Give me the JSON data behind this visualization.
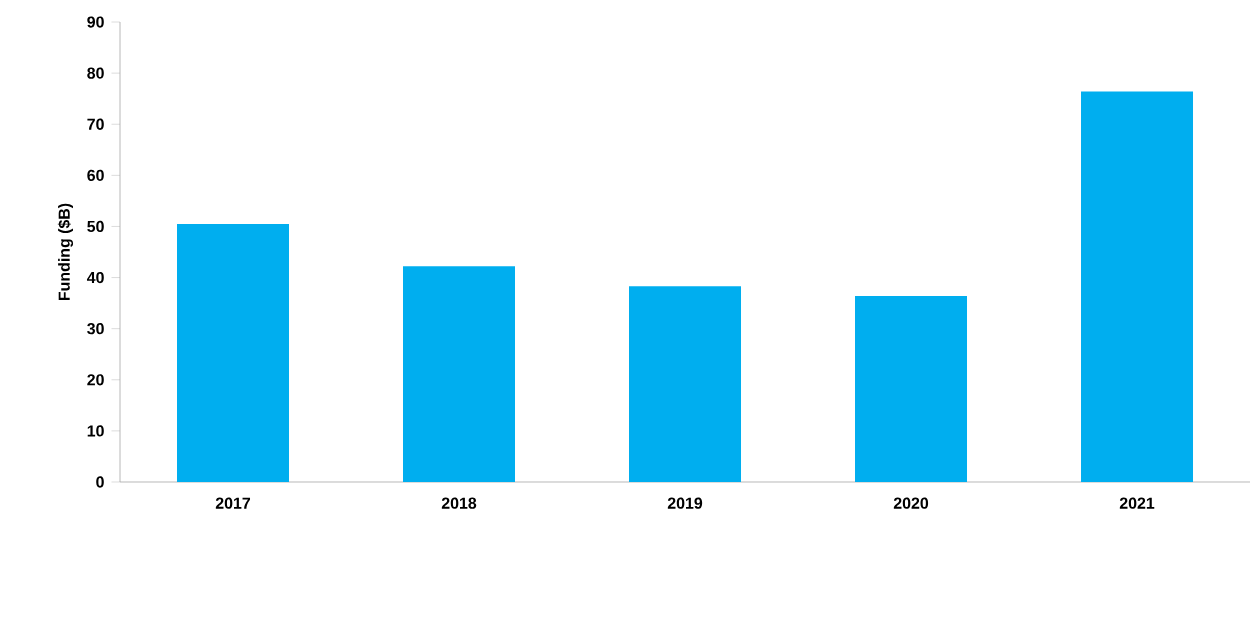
{
  "chart_data": {
    "type": "bar",
    "ylabel": "Funding ($B)",
    "categories": [
      "2017",
      "2018",
      "2019",
      "2020",
      "2021"
    ],
    "values": [
      50.5,
      42.2,
      38.3,
      36.4,
      76.4
    ],
    "color": "#00aeef",
    "ylim": [
      0,
      90
    ],
    "yticks": [
      0,
      10,
      20,
      30,
      40,
      50,
      60,
      70,
      80,
      90
    ],
    "grid": false
  }
}
